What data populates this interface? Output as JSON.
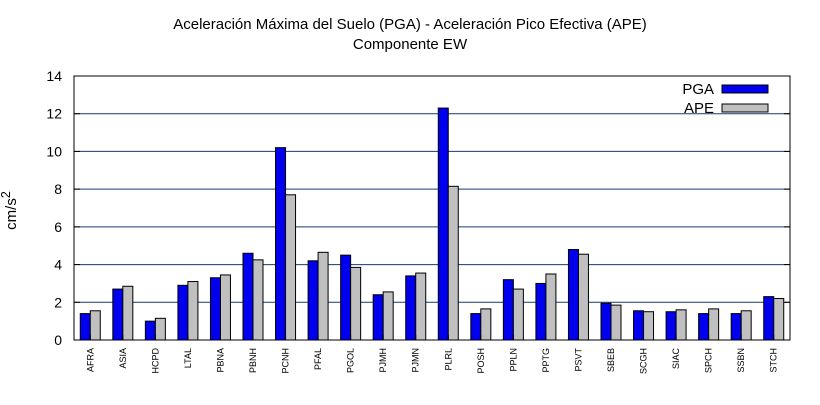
{
  "chart_data": {
    "type": "bar",
    "title": "Aceleración Máxima del Suelo (PGA) -  Aceleración Pico Efectiva (APE)",
    "subtitle": "Componente EW",
    "ylabel_base": "cm/s",
    "ylabel_sup": "2",
    "xlabel": "",
    "ylim": [
      0,
      14
    ],
    "yticks": [
      0,
      2,
      4,
      6,
      8,
      10,
      12,
      14
    ],
    "grid": true,
    "legend_position": "top-right",
    "categories": [
      "AFRA",
      "ASIA",
      "HCPD",
      "LTAL",
      "PBNA",
      "PBNH",
      "PCNH",
      "PFAL",
      "PGOL",
      "PJMH",
      "PJMN",
      "PLRL",
      "POSH",
      "PPLN",
      "PPTG",
      "PSVT",
      "SBEB",
      "SCGH",
      "SIAC",
      "SPCH",
      "SSBN",
      "STCH"
    ],
    "series": [
      {
        "name": "PGA",
        "color": "#0000ee",
        "values": [
          1.4,
          2.7,
          1.0,
          2.9,
          3.3,
          4.6,
          10.2,
          4.2,
          4.5,
          2.4,
          3.4,
          12.3,
          1.4,
          3.2,
          3.0,
          4.8,
          1.95,
          1.55,
          1.5,
          1.4,
          1.4,
          2.3
        ]
      },
      {
        "name": "APE",
        "color": "#c0c0c0",
        "values": [
          1.55,
          2.85,
          1.15,
          3.1,
          3.45,
          4.25,
          7.7,
          4.65,
          3.85,
          2.55,
          3.55,
          8.15,
          1.65,
          2.7,
          3.5,
          4.55,
          1.85,
          1.5,
          1.6,
          1.65,
          1.55,
          2.2
        ]
      }
    ]
  }
}
